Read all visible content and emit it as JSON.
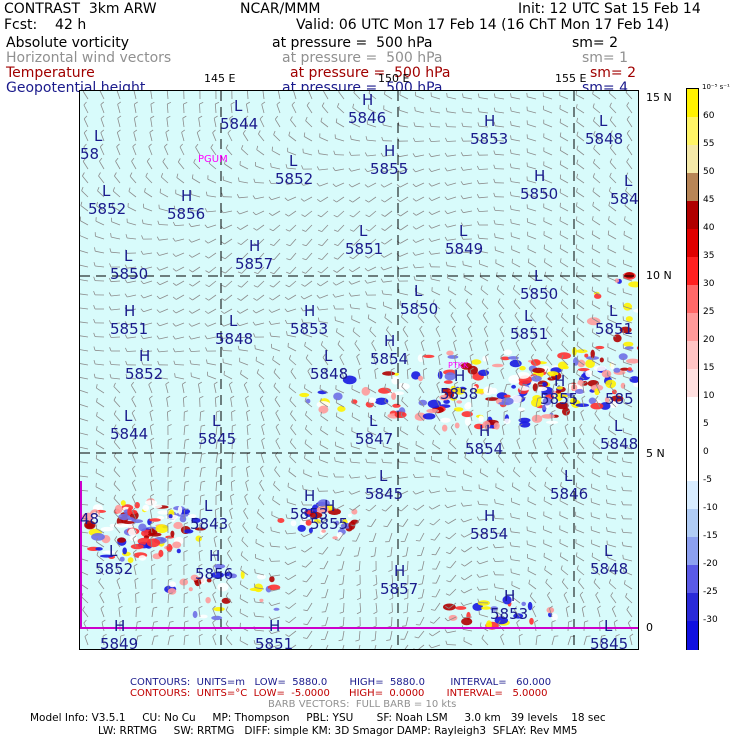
{
  "header": {
    "model_name": "CONTRAST  3km ARW",
    "forecast": "Fcst:    42 h",
    "org": "NCAR/MMM",
    "init": "Init: 12 UTC Sat 15 Feb 14",
    "valid": "Valid: 06 UTC Mon 17 Feb 14 (16 ChT Mon 17 Feb 14)"
  },
  "fields": [
    {
      "name": "Absolute vorticity",
      "level": "at pressure =  500 hPa",
      "sm": "sm= 2",
      "color": "#000000"
    },
    {
      "name": "Horizontal wind vectors",
      "level": "at pressure =  500 hPa",
      "sm": "sm= 1",
      "color": "#909090"
    },
    {
      "name": "Temperature",
      "level": "at pressure =  500 hPa",
      "sm": "sm= 2",
      "color": "#a00000"
    },
    {
      "name": "Geopotential height",
      "level": "at pressure =  500 hPa",
      "sm": "sm= 4",
      "color": "#1a1a8c"
    }
  ],
  "axes": {
    "lon_labels": [
      "145 E",
      "150 E",
      "155 E"
    ],
    "lat_labels": [
      "15 N",
      "10 N",
      "5 N",
      "0"
    ]
  },
  "station_labels": [
    "PGUM",
    "PTKK"
  ],
  "hl_markers": [
    {
      "sym": "H",
      "val": "5846"
    },
    {
      "sym": "L",
      "val": "5844"
    },
    {
      "sym": "H",
      "val": "5853"
    },
    {
      "sym": "L",
      "val": "5848"
    },
    {
      "sym": "L",
      "val": "5852"
    },
    {
      "sym": "H",
      "val": "5855"
    },
    {
      "sym": "L",
      "val": "5852"
    },
    {
      "sym": "H",
      "val": "5856"
    },
    {
      "sym": "H",
      "val": "5850"
    },
    {
      "sym": "L",
      "val": "5848"
    },
    {
      "sym": "L",
      "val": "5851"
    },
    {
      "sym": "L",
      "val": "5849"
    },
    {
      "sym": "H",
      "val": "5857"
    },
    {
      "sym": "L",
      "val": "5850"
    },
    {
      "sym": "L",
      "val": "5850"
    },
    {
      "sym": "L",
      "val": "5850"
    },
    {
      "sym": "H",
      "val": "5851"
    },
    {
      "sym": "L",
      "val": "5848"
    },
    {
      "sym": "H",
      "val": "5853"
    },
    {
      "sym": "L",
      "val": "5851"
    },
    {
      "sym": "H",
      "val": "5854"
    },
    {
      "sym": "L",
      "val": "5851"
    },
    {
      "sym": "H",
      "val": "5852"
    },
    {
      "sym": "L",
      "val": "5848"
    },
    {
      "sym": "H",
      "val": "5858"
    },
    {
      "sym": "H",
      "val": "5855"
    },
    {
      "sym": "L",
      "val": "5844"
    },
    {
      "sym": "L",
      "val": "5845"
    },
    {
      "sym": "L",
      "val": "5847"
    },
    {
      "sym": "H",
      "val": "5854"
    },
    {
      "sym": "L",
      "val": "5848"
    },
    {
      "sym": "L",
      "val": "5846"
    },
    {
      "sym": "L",
      "val": "5845"
    },
    {
      "sym": "H",
      "val": "5853"
    },
    {
      "sym": "H",
      "val": "5855"
    },
    {
      "sym": "L",
      "val": "5843"
    },
    {
      "sym": "H",
      "val": "5854"
    },
    {
      "sym": "L",
      "val": "5852"
    },
    {
      "sym": "H",
      "val": "5856"
    },
    {
      "sym": "H",
      "val": "5857"
    },
    {
      "sym": "L",
      "val": "5848"
    },
    {
      "sym": "H",
      "val": "5853"
    },
    {
      "sym": "H",
      "val": "5849"
    },
    {
      "sym": "H",
      "val": "5851"
    },
    {
      "sym": "L",
      "val": "5845"
    },
    {
      "sym": "L",
      "val": "58"
    },
    {
      "sym": "",
      "val": "48"
    },
    {
      "sym": "",
      "val": "585"
    }
  ],
  "colorbar": {
    "unit": "10⁻⁵ s⁻¹",
    "labels": [
      "60",
      "55",
      "50",
      "45",
      "40",
      "35",
      "30",
      "25",
      "20",
      "15",
      "10",
      "5",
      "0",
      "-5",
      "-10",
      "-15",
      "-20",
      "-25",
      "-30"
    ],
    "colors": [
      "#fff200",
      "#fff566",
      "#f5e9a8",
      "#b88556",
      "#b00000",
      "#e00000",
      "#ff2020",
      "#ff6868",
      "#ff9a9a",
      "#ffc4c4",
      "#ffe0e0",
      "#ffffff",
      "#ffffff",
      "#ffffff",
      "#d8ecff",
      "#b0ccf5",
      "#8ca0f0",
      "#5a5ae6",
      "#2a2ad8",
      "#1010e0"
    ]
  },
  "footer": {
    "contours_height": "CONTOURS:  UNITS=m   LOW=  5880.0       HIGH=  5880.0        INTERVAL=   60.000",
    "contours_temp": "CONTOURS:  UNITS=°C  LOW=  -5.0000      HIGH=  0.0000       INTERVAL=   5.0000",
    "barb": "BARB VECTORS:  FULL BARB = 10 kts",
    "model_line1": "Model Info: V3.5.1     CU: No Cu     MP: Thompson     PBL: YSU       SF: Noah LSM     3.0 km   39 levels    18 sec",
    "model_line2": "LW: RRTMG     SW: RRTMG   DIFF: simple KM: 3D Smagor DAMP: Rayleigh3  SFLAY: Rev MM5"
  }
}
